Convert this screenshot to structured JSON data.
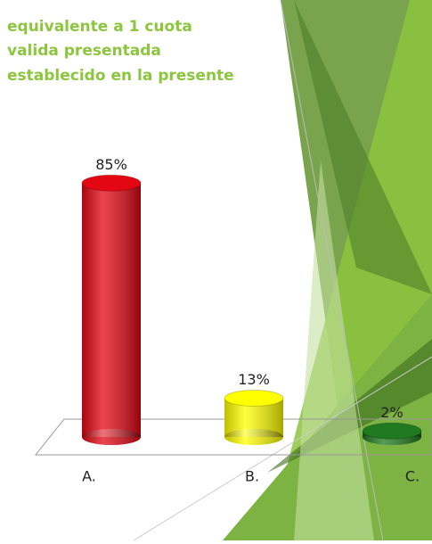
{
  "chart_data": {
    "type": "bar",
    "title_lines": [
      "equivalente a 1 cuota",
      "valida presentada",
      "establecido en la presente"
    ],
    "categories": [
      "A.",
      "B.",
      "C."
    ],
    "values": [
      85,
      13,
      2
    ],
    "value_labels": [
      "85%",
      "13%",
      "2%"
    ],
    "colors": [
      "#e30613",
      "#ffff00",
      "#1f7a1f"
    ]
  }
}
